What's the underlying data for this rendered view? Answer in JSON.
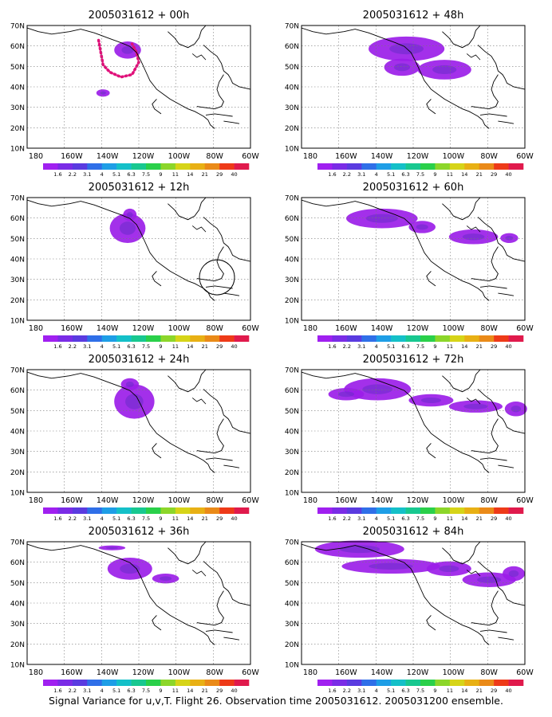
{
  "figure": {
    "caption": "Signal Variance for u,v,T. Flight 26. Observation time 2005031612. 2005031200 ensemble.",
    "lat_labels": [
      "70N",
      "60N",
      "50N",
      "40N",
      "30N",
      "20N",
      "10N"
    ],
    "lon_labels": [
      "180",
      "160W",
      "140W",
      "120W",
      "100W",
      "80W",
      "60W"
    ],
    "colorbar": {
      "labels": [
        "1.6",
        "2.2",
        "3.1",
        "4",
        "5.1",
        "6.3",
        "7.5",
        "9",
        "11",
        "14",
        "21",
        "29",
        "40"
      ],
      "colors": [
        "#a020f0",
        "#7a2ce6",
        "#5a3be0",
        "#2f6fe8",
        "#1e9ee6",
        "#14c0c8",
        "#18c890",
        "#2ad04a",
        "#8cd62a",
        "#d6d418",
        "#e8b014",
        "#ea8a18",
        "#ee3a18",
        "#e01a4c"
      ]
    },
    "fill_color": "#9b1ee8",
    "dot_color": "#e0117a",
    "panels": [
      {
        "title": "2005031612 + 00h"
      },
      {
        "title": "2005031612 + 48h"
      },
      {
        "title": "2005031612 + 12h"
      },
      {
        "title": "2005031612 + 60h"
      },
      {
        "title": "2005031612 + 24h"
      },
      {
        "title": "2005031612 + 72h"
      },
      {
        "title": "2005031612 + 36h"
      },
      {
        "title": "2005031612 + 84h"
      }
    ]
  }
}
